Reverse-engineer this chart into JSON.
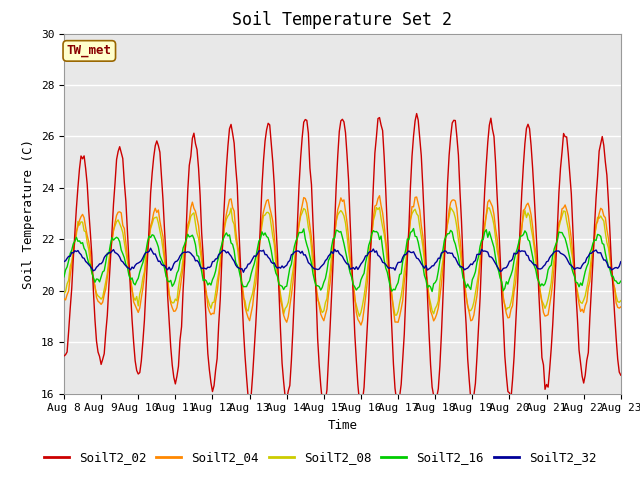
{
  "title": "Soil Temperature Set 2",
  "xlabel": "Time",
  "ylabel": "Soil Temperature (C)",
  "ylim": [
    16,
    30
  ],
  "xlim_days": [
    0,
    15
  ],
  "xtick_labels": [
    "Aug 8",
    "Aug 9",
    "Aug 10",
    "Aug 11",
    "Aug 12",
    "Aug 13",
    "Aug 14",
    "Aug 15",
    "Aug 16",
    "Aug 17",
    "Aug 18",
    "Aug 19",
    "Aug 20",
    "Aug 21",
    "Aug 22",
    "Aug 23"
  ],
  "annotation": "TW_met",
  "annotation_bg": "#ffffcc",
  "annotation_border": "#996600",
  "legend_labels": [
    "SoilT2_02",
    "SoilT2_04",
    "SoilT2_08",
    "SoilT2_16",
    "SoilT2_32"
  ],
  "line_colors": [
    "#cc0000",
    "#ff8800",
    "#cccc00",
    "#00cc00",
    "#000099"
  ],
  "bg_color": "#e8e8e8",
  "fig_bg": "#ffffff",
  "title_fontsize": 12,
  "axis_label_fontsize": 9,
  "tick_fontsize": 8,
  "legend_fontsize": 9,
  "grid_color": "#ffffff",
  "grid_lw": 1.0,
  "base_mean": 21.2,
  "amp_02": 4.2,
  "amp_04": 1.8,
  "amp_08": 1.5,
  "amp_16": 0.85,
  "amp_32": 0.35,
  "total_days": 15
}
